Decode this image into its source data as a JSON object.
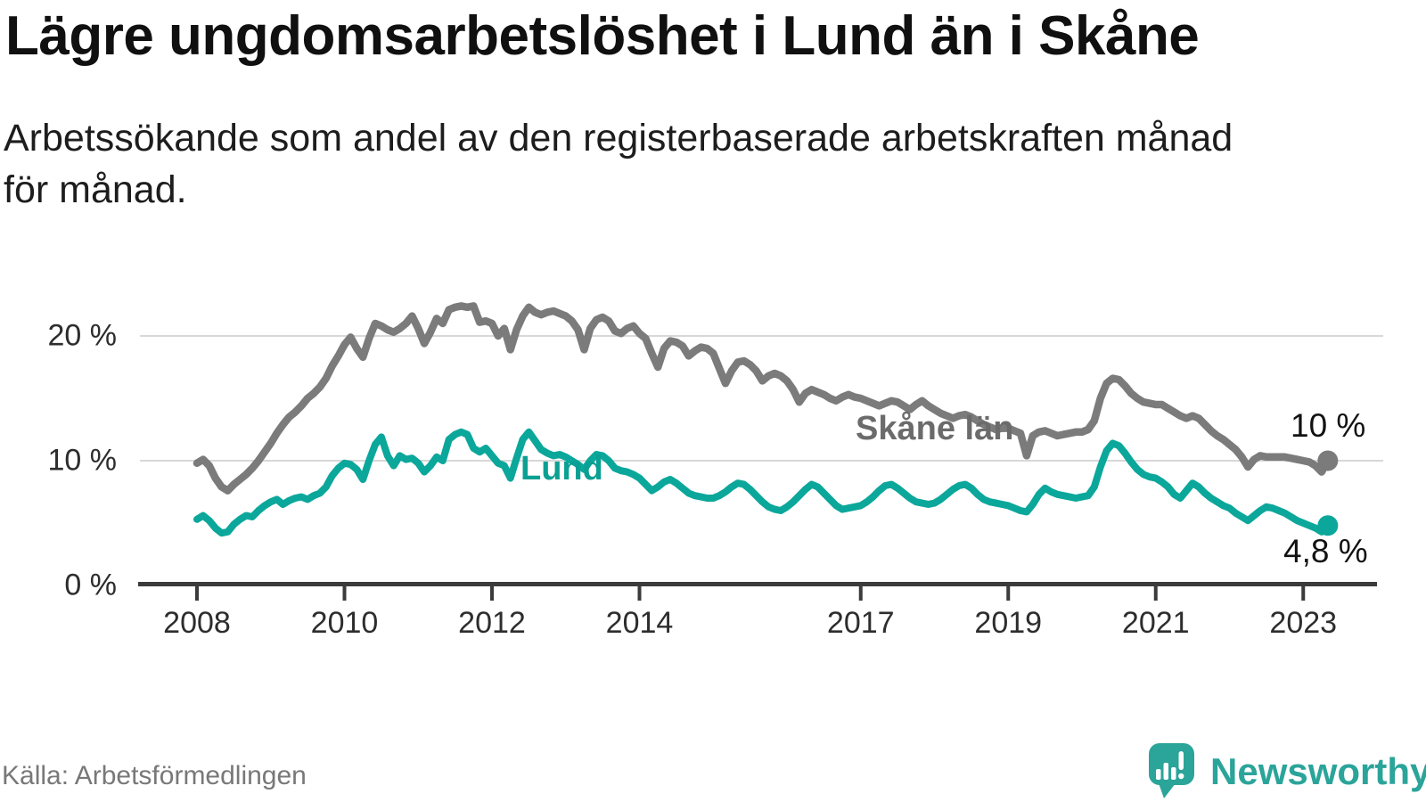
{
  "title": "Lägre ungdomsarbetslöshet i Lund än i Skåne",
  "subtitle": {
    "line1": "Arbetssökande som andel av den registerbaserade arbetskraften månad",
    "line2": "för månad."
  },
  "source": "Källa: Arbetsförmedlingen",
  "brand": {
    "name": "Newsworthy",
    "logo_icon": "speech-bubble-bar-chart-exclamation",
    "color": "#2ba49a"
  },
  "colors": {
    "skane_line": "#7b7b7b",
    "skane_label": "#6b6b6b",
    "lund_line": "#0ba79b",
    "lund_label": "#0aa093",
    "gridline": "#d8d8d8",
    "axis": "#3b3b3b",
    "end_label_text": "#121212"
  },
  "annotations": {
    "skane_series_label": "Skåne län",
    "lund_series_label": "Lund",
    "skane_end_value_label": "10 %",
    "lund_end_value_label": "4,8 %"
  },
  "chart_data": {
    "type": "line",
    "title": "Lägre ungdomsarbetslöshet i Lund än i Skåne",
    "xlabel": "",
    "ylabel": "",
    "frequency": "monthly",
    "x_start": "2008-01",
    "x_end": "2023-05",
    "x_tick_labels": [
      "2008",
      "2010",
      "2012",
      "2014",
      "2017",
      "2019",
      "2021",
      "2023"
    ],
    "y_tick_labels": [
      "0 %",
      "10 %",
      "20 %"
    ],
    "y_gridlines": [
      10,
      20
    ],
    "ylim": [
      0,
      24
    ],
    "legend_position": "inline-labels",
    "grid": "horizontal-only",
    "series": [
      {
        "name": "Skåne län",
        "color": "#7b7b7b",
        "end_dot": true,
        "end_value": 10.0,
        "values": [
          9.8,
          10.1,
          9.6,
          8.6,
          7.9,
          7.6,
          8.1,
          8.5,
          8.9,
          9.4,
          10.0,
          10.7,
          11.4,
          12.2,
          12.9,
          13.5,
          13.9,
          14.4,
          15.0,
          15.4,
          15.9,
          16.6,
          17.6,
          18.4,
          19.3,
          19.9,
          19.0,
          18.3,
          19.8,
          21.0,
          20.8,
          20.5,
          20.3,
          20.6,
          21.0,
          21.6,
          20.6,
          19.4,
          20.3,
          21.4,
          21.0,
          22.1,
          22.3,
          22.4,
          22.3,
          22.4,
          21.1,
          21.2,
          21.0,
          20.0,
          20.6,
          18.9,
          20.5,
          21.6,
          22.3,
          21.9,
          21.7,
          21.9,
          22.0,
          21.8,
          21.6,
          21.2,
          20.5,
          18.9,
          20.6,
          21.3,
          21.5,
          21.2,
          20.4,
          20.2,
          20.6,
          20.8,
          20.2,
          19.8,
          18.6,
          17.5,
          19.0,
          19.6,
          19.5,
          19.2,
          18.4,
          18.8,
          19.1,
          19.0,
          18.6,
          17.4,
          16.2,
          17.2,
          17.9,
          18.0,
          17.7,
          17.2,
          16.4,
          16.8,
          17.0,
          16.8,
          16.4,
          15.7,
          14.7,
          15.4,
          15.7,
          15.5,
          15.3,
          15.0,
          14.8,
          15.1,
          15.3,
          15.1,
          15.0,
          14.8,
          14.6,
          14.4,
          14.6,
          14.8,
          14.7,
          14.4,
          14.1,
          14.5,
          14.8,
          14.4,
          14.1,
          13.8,
          13.6,
          13.4,
          13.6,
          13.7,
          13.5,
          13.2,
          12.9,
          12.7,
          12.5,
          12.6,
          12.6,
          12.4,
          12.2,
          10.4,
          12.0,
          12.3,
          12.4,
          12.2,
          12.0,
          12.1,
          12.2,
          12.3,
          12.3,
          12.5,
          13.2,
          15.0,
          16.2,
          16.6,
          16.5,
          16.0,
          15.4,
          15.0,
          14.7,
          14.6,
          14.5,
          14.5,
          14.2,
          13.9,
          13.6,
          13.4,
          13.6,
          13.4,
          12.9,
          12.4,
          12.0,
          11.7,
          11.3,
          10.9,
          10.3,
          9.5,
          10.1,
          10.4,
          10.3,
          10.3,
          10.3,
          10.3,
          10.2,
          10.1,
          10.0,
          9.9,
          9.6,
          9.1,
          10.0
        ]
      },
      {
        "name": "Lund",
        "color": "#0ba79b",
        "end_dot": true,
        "end_value": 4.8,
        "values": [
          5.3,
          5.6,
          5.2,
          4.6,
          4.2,
          4.3,
          4.9,
          5.3,
          5.6,
          5.5,
          6.0,
          6.4,
          6.7,
          6.9,
          6.5,
          6.8,
          7.0,
          7.1,
          6.9,
          7.2,
          7.4,
          7.9,
          8.8,
          9.4,
          9.8,
          9.7,
          9.3,
          8.5,
          10.0,
          11.3,
          11.9,
          10.4,
          9.6,
          10.4,
          10.1,
          10.2,
          9.8,
          9.1,
          9.6,
          10.3,
          10.0,
          11.7,
          12.1,
          12.3,
          12.1,
          11.0,
          10.7,
          11.0,
          10.4,
          9.8,
          9.6,
          8.6,
          10.2,
          11.7,
          12.3,
          11.6,
          10.9,
          10.6,
          10.4,
          10.5,
          10.3,
          10.0,
          9.7,
          9.3,
          10.0,
          10.5,
          10.4,
          10.0,
          9.4,
          9.2,
          9.1,
          8.9,
          8.6,
          8.1,
          7.6,
          7.9,
          8.3,
          8.5,
          8.2,
          7.8,
          7.4,
          7.2,
          7.1,
          7.0,
          7.0,
          7.2,
          7.5,
          7.9,
          8.2,
          8.1,
          7.7,
          7.2,
          6.7,
          6.3,
          6.1,
          6.0,
          6.3,
          6.7,
          7.2,
          7.7,
          8.1,
          7.9,
          7.4,
          6.9,
          6.4,
          6.1,
          6.2,
          6.3,
          6.4,
          6.7,
          7.1,
          7.6,
          8.0,
          8.1,
          7.8,
          7.4,
          7.0,
          6.7,
          6.6,
          6.5,
          6.6,
          6.9,
          7.3,
          7.7,
          8.0,
          8.1,
          7.8,
          7.3,
          6.9,
          6.7,
          6.6,
          6.5,
          6.4,
          6.2,
          6.0,
          5.9,
          6.5,
          7.3,
          7.8,
          7.5,
          7.3,
          7.2,
          7.1,
          7.0,
          7.1,
          7.2,
          7.9,
          9.5,
          10.8,
          11.4,
          11.2,
          10.6,
          9.9,
          9.3,
          8.9,
          8.7,
          8.6,
          8.3,
          7.9,
          7.3,
          7.0,
          7.6,
          8.2,
          7.9,
          7.4,
          7.0,
          6.7,
          6.4,
          6.2,
          5.8,
          5.5,
          5.2,
          5.6,
          6.0,
          6.3,
          6.2,
          6.0,
          5.8,
          5.5,
          5.2,
          5.0,
          4.8,
          4.6,
          4.3,
          4.8
        ]
      }
    ]
  }
}
